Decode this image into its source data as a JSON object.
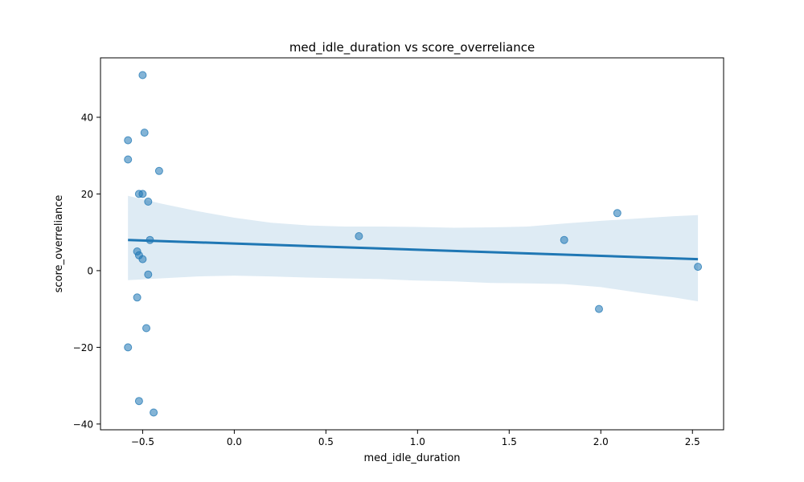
{
  "chart_data": {
    "type": "scatter",
    "title": "med_idle_duration vs score_overreliance",
    "xlabel": "med_idle_duration",
    "ylabel": "score_overreliance",
    "xlim": [
      -0.73,
      2.67
    ],
    "ylim": [
      -41.5,
      55.5
    ],
    "x_ticks": [
      -0.5,
      0.0,
      0.5,
      1.0,
      1.5,
      2.0,
      2.5
    ],
    "x_tick_labels": [
      "−0.5",
      "0.0",
      "0.5",
      "1.0",
      "1.5",
      "2.0",
      "2.5"
    ],
    "y_ticks": [
      -40,
      -20,
      0,
      20,
      40
    ],
    "y_tick_labels": [
      "−40",
      "−20",
      "0",
      "20",
      "40"
    ],
    "grid": false,
    "point_color": "#1f77b4",
    "points": [
      {
        "x": -0.5,
        "y": 51
      },
      {
        "x": -0.49,
        "y": 36
      },
      {
        "x": -0.58,
        "y": 34
      },
      {
        "x": -0.58,
        "y": 29
      },
      {
        "x": -0.41,
        "y": 26
      },
      {
        "x": -0.52,
        "y": 20
      },
      {
        "x": -0.5,
        "y": 20
      },
      {
        "x": -0.47,
        "y": 18
      },
      {
        "x": -0.46,
        "y": 8
      },
      {
        "x": -0.53,
        "y": 5
      },
      {
        "x": -0.52,
        "y": 4
      },
      {
        "x": -0.5,
        "y": 3
      },
      {
        "x": -0.47,
        "y": -1
      },
      {
        "x": -0.53,
        "y": -7
      },
      {
        "x": -0.48,
        "y": -15
      },
      {
        "x": -0.58,
        "y": -20
      },
      {
        "x": -0.52,
        "y": -34
      },
      {
        "x": -0.44,
        "y": -37
      },
      {
        "x": 0.68,
        "y": 9
      },
      {
        "x": 1.8,
        "y": 8
      },
      {
        "x": 1.99,
        "y": -10
      },
      {
        "x": 2.09,
        "y": 15
      },
      {
        "x": 2.53,
        "y": 1
      }
    ],
    "regression": {
      "color": "#1f77b4",
      "band_color": "#1f77b4",
      "line": [
        {
          "x": -0.58,
          "y": 8.0
        },
        {
          "x": 2.53,
          "y": 3.0
        }
      ],
      "band": [
        {
          "x": -0.58,
          "lower": -2.5,
          "upper": 19.5
        },
        {
          "x": -0.4,
          "lower": -2.0,
          "upper": 17.5
        },
        {
          "x": -0.2,
          "lower": -1.5,
          "upper": 15.5
        },
        {
          "x": 0.0,
          "lower": -1.3,
          "upper": 13.8
        },
        {
          "x": 0.2,
          "lower": -1.5,
          "upper": 12.5
        },
        {
          "x": 0.4,
          "lower": -1.8,
          "upper": 11.8
        },
        {
          "x": 0.6,
          "lower": -2.0,
          "upper": 11.5
        },
        {
          "x": 0.8,
          "lower": -2.2,
          "upper": 11.5
        },
        {
          "x": 1.0,
          "lower": -2.6,
          "upper": 11.4
        },
        {
          "x": 1.2,
          "lower": -2.8,
          "upper": 11.2
        },
        {
          "x": 1.4,
          "lower": -3.2,
          "upper": 11.3
        },
        {
          "x": 1.6,
          "lower": -3.3,
          "upper": 11.5
        },
        {
          "x": 1.8,
          "lower": -3.5,
          "upper": 12.3
        },
        {
          "x": 2.0,
          "lower": -4.3,
          "upper": 13.0
        },
        {
          "x": 2.2,
          "lower": -5.7,
          "upper": 13.6
        },
        {
          "x": 2.4,
          "lower": -7.0,
          "upper": 14.2
        },
        {
          "x": 2.53,
          "lower": -8.0,
          "upper": 14.5
        }
      ]
    }
  }
}
